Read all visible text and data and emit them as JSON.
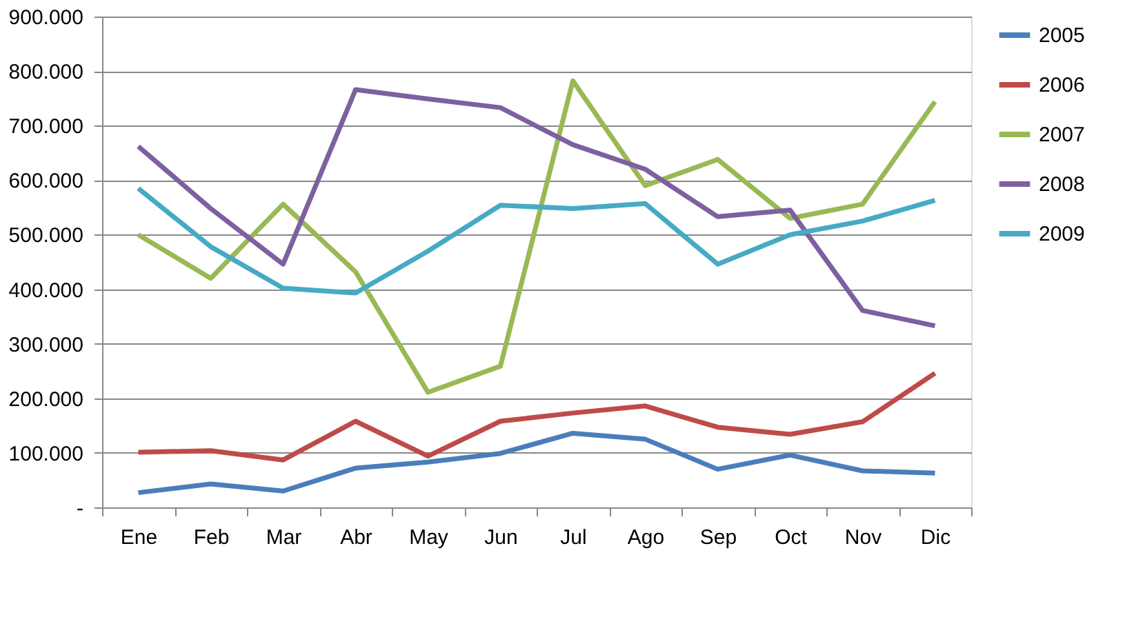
{
  "chart_data": {
    "type": "line",
    "categories": [
      "Ene",
      "Feb",
      "Mar",
      "Abr",
      "May",
      "Jun",
      "Jul",
      "Ago",
      "Sep",
      "Oct",
      "Nov",
      "Dic"
    ],
    "series": [
      {
        "name": "2005",
        "color": "#4a7ebb",
        "values": [
          27000,
          43000,
          30000,
          72000,
          83000,
          99000,
          136000,
          125000,
          70000,
          96000,
          67000,
          63000
        ]
      },
      {
        "name": "2006",
        "color": "#be4b48",
        "values": [
          101000,
          104000,
          87000,
          158000,
          94000,
          158000,
          173000,
          186000,
          147000,
          134000,
          157000,
          246000
        ]
      },
      {
        "name": "2007",
        "color": "#98b954",
        "values": [
          500000,
          420000,
          556000,
          432000,
          211000,
          259000,
          782000,
          590000,
          638000,
          530000,
          556000,
          744000
        ]
      },
      {
        "name": "2008",
        "color": "#7d60a0",
        "values": [
          662000,
          548000,
          446000,
          766000,
          749000,
          733000,
          665000,
          620000,
          533000,
          545000,
          361000,
          333000
        ]
      },
      {
        "name": "2009",
        "color": "#46aac5",
        "values": [
          585000,
          478000,
          402000,
          393000,
          470000,
          554000,
          548000,
          557000,
          446000,
          500000,
          525000,
          563000
        ]
      }
    ],
    "ylim": [
      0,
      900000
    ],
    "yticks": [
      {
        "value": 0,
        "label": "-"
      },
      {
        "value": 100000,
        "label": "100.000"
      },
      {
        "value": 200000,
        "label": "200.000"
      },
      {
        "value": 300000,
        "label": "300.000"
      },
      {
        "value": 400000,
        "label": "400.000"
      },
      {
        "value": 500000,
        "label": "500.000"
      },
      {
        "value": 600000,
        "label": "600.000"
      },
      {
        "value": 700000,
        "label": "700.000"
      },
      {
        "value": 800000,
        "label": "800.000"
      },
      {
        "value": 900000,
        "label": "900.000"
      }
    ],
    "grid": "y",
    "legend": "right",
    "marker": "none",
    "line_style": "solid"
  }
}
